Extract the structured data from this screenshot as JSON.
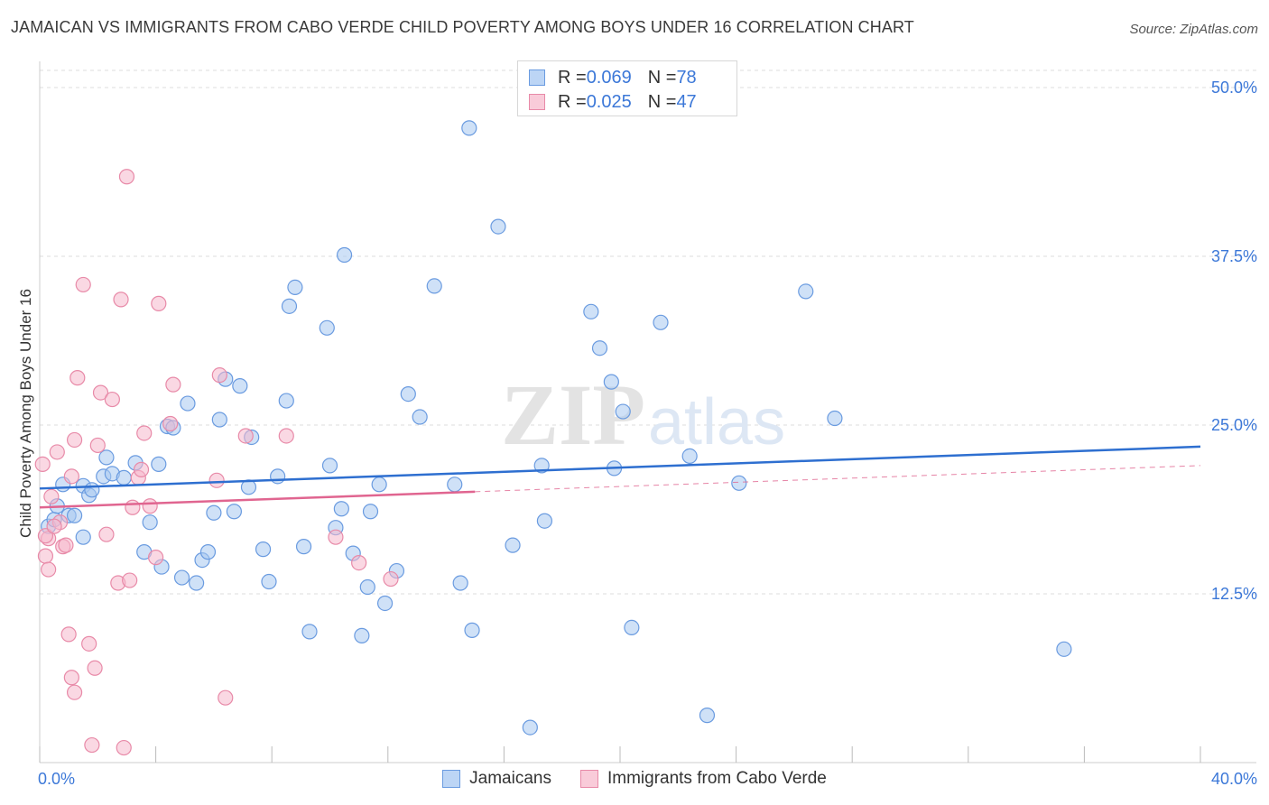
{
  "title": "JAMAICAN VS IMMIGRANTS FROM CABO VERDE CHILD POVERTY AMONG BOYS UNDER 16 CORRELATION CHART",
  "source": "Source: ZipAtlas.com",
  "watermark": {
    "zip": "ZIP",
    "atlas": "atlas"
  },
  "legend": {
    "rows": [
      {
        "r_label": "R = ",
        "r_value": "0.069",
        "n_label": "N = ",
        "n_value": "78"
      },
      {
        "r_label": "R = ",
        "r_value": "0.025",
        "n_label": "N = ",
        "n_value": "47"
      }
    ]
  },
  "chart_data": {
    "type": "scatter",
    "xlabel": "",
    "ylabel": "Child Poverty Among Boys Under 16",
    "xlim": [
      0,
      40
    ],
    "ylim": [
      0,
      50
    ],
    "x_tick_labels": [
      {
        "value": 0,
        "label": "0.0%"
      },
      {
        "value": 40,
        "label": "40.0%"
      }
    ],
    "y_tick_labels": [
      {
        "value": 12.5,
        "label": "12.5%"
      },
      {
        "value": 25,
        "label": "25.0%"
      },
      {
        "value": 37.5,
        "label": "37.5%"
      },
      {
        "value": 50,
        "label": "50.0%"
      }
    ],
    "x_minor_ticks": [
      0,
      4,
      8,
      12,
      16,
      20,
      24,
      28,
      32,
      36,
      40
    ],
    "grid": true,
    "legend_position": "bottom",
    "colors": {
      "jamaicans_fill": "#a8c8f0",
      "jamaicans_stroke": "#6a9be0",
      "jamaicans_line": "#2e6fd0",
      "caboverde_fill": "#f6b8cc",
      "caboverde_stroke": "#e88aa8",
      "caboverde_line": "#e06590",
      "axis_label": "#3c78d8",
      "grid": "#dddddd"
    },
    "series": [
      {
        "name": "Jamaicans",
        "trend": {
          "x": [
            0,
            40
          ],
          "y": [
            20.3,
            23.4
          ],
          "dashed_from": null
        },
        "points": [
          [
            0.3,
            17.5
          ],
          [
            0.5,
            18.0
          ],
          [
            0.6,
            19.0
          ],
          [
            0.8,
            20.6
          ],
          [
            1.0,
            18.3
          ],
          [
            1.2,
            18.3
          ],
          [
            1.5,
            16.7
          ],
          [
            1.5,
            20.5
          ],
          [
            1.7,
            19.8
          ],
          [
            1.8,
            20.2
          ],
          [
            2.2,
            21.2
          ],
          [
            2.3,
            22.6
          ],
          [
            2.5,
            21.4
          ],
          [
            2.9,
            21.1
          ],
          [
            3.3,
            22.2
          ],
          [
            3.6,
            15.6
          ],
          [
            3.8,
            17.8
          ],
          [
            4.1,
            22.1
          ],
          [
            4.2,
            14.5
          ],
          [
            4.4,
            24.9
          ],
          [
            4.6,
            24.8
          ],
          [
            4.9,
            13.7
          ],
          [
            5.1,
            26.6
          ],
          [
            5.4,
            13.3
          ],
          [
            5.6,
            15.0
          ],
          [
            5.8,
            15.6
          ],
          [
            6.0,
            18.5
          ],
          [
            6.2,
            25.4
          ],
          [
            6.4,
            28.4
          ],
          [
            6.7,
            18.6
          ],
          [
            6.9,
            27.9
          ],
          [
            7.2,
            20.4
          ],
          [
            7.3,
            24.1
          ],
          [
            7.7,
            15.8
          ],
          [
            7.9,
            13.4
          ],
          [
            8.2,
            21.2
          ],
          [
            8.5,
            26.8
          ],
          [
            8.6,
            33.8
          ],
          [
            8.8,
            35.2
          ],
          [
            9.1,
            16.0
          ],
          [
            9.3,
            9.7
          ],
          [
            9.9,
            32.2
          ],
          [
            10.0,
            22.0
          ],
          [
            10.2,
            17.4
          ],
          [
            10.4,
            18.8
          ],
          [
            10.5,
            37.6
          ],
          [
            10.8,
            15.5
          ],
          [
            11.1,
            9.4
          ],
          [
            11.3,
            13.0
          ],
          [
            11.4,
            18.6
          ],
          [
            11.7,
            20.6
          ],
          [
            11.9,
            11.8
          ],
          [
            12.3,
            14.2
          ],
          [
            12.7,
            27.3
          ],
          [
            13.1,
            25.6
          ],
          [
            13.6,
            35.3
          ],
          [
            14.3,
            20.6
          ],
          [
            14.5,
            13.3
          ],
          [
            14.8,
            47.0
          ],
          [
            14.9,
            9.8
          ],
          [
            15.8,
            39.7
          ],
          [
            16.3,
            16.1
          ],
          [
            16.9,
            2.6
          ],
          [
            17.3,
            22.0
          ],
          [
            17.4,
            17.9
          ],
          [
            19.0,
            33.4
          ],
          [
            19.3,
            30.7
          ],
          [
            19.7,
            28.2
          ],
          [
            19.8,
            21.8
          ],
          [
            20.1,
            26.0
          ],
          [
            20.4,
            10.0
          ],
          [
            21.4,
            32.6
          ],
          [
            22.4,
            22.7
          ],
          [
            23.0,
            3.5
          ],
          [
            24.1,
            20.7
          ],
          [
            26.4,
            34.9
          ],
          [
            27.4,
            25.5
          ],
          [
            35.3,
            8.4
          ]
        ]
      },
      {
        "name": "Immigrants from Cabo Verde",
        "trend": {
          "x": [
            0,
            40
          ],
          "y": [
            18.9,
            22.0
          ],
          "dashed_from": 15
        },
        "points": [
          [
            0.1,
            22.1
          ],
          [
            0.2,
            15.3
          ],
          [
            0.3,
            14.3
          ],
          [
            0.3,
            16.6
          ],
          [
            0.4,
            19.7
          ],
          [
            0.6,
            23.0
          ],
          [
            0.7,
            17.8
          ],
          [
            0.8,
            16.0
          ],
          [
            0.9,
            16.1
          ],
          [
            1.0,
            9.5
          ],
          [
            1.1,
            21.2
          ],
          [
            1.1,
            6.3
          ],
          [
            1.2,
            5.2
          ],
          [
            1.2,
            23.9
          ],
          [
            1.3,
            28.5
          ],
          [
            1.5,
            35.4
          ],
          [
            1.7,
            8.8
          ],
          [
            1.8,
            1.3
          ],
          [
            1.9,
            7.0
          ],
          [
            2.0,
            23.5
          ],
          [
            2.1,
            27.4
          ],
          [
            2.3,
            16.9
          ],
          [
            2.5,
            26.9
          ],
          [
            2.7,
            13.3
          ],
          [
            2.8,
            34.3
          ],
          [
            2.9,
            1.1
          ],
          [
            3.0,
            43.4
          ],
          [
            3.1,
            13.5
          ],
          [
            3.2,
            18.9
          ],
          [
            3.4,
            21.1
          ],
          [
            3.5,
            21.7
          ],
          [
            3.6,
            24.4
          ],
          [
            3.8,
            19.0
          ],
          [
            4.0,
            15.2
          ],
          [
            4.1,
            34.0
          ],
          [
            4.5,
            25.1
          ],
          [
            4.6,
            28.0
          ],
          [
            6.1,
            20.9
          ],
          [
            6.2,
            28.7
          ],
          [
            6.4,
            4.8
          ],
          [
            7.1,
            24.2
          ],
          [
            8.5,
            24.2
          ],
          [
            10.2,
            16.7
          ],
          [
            11.0,
            14.8
          ],
          [
            12.1,
            13.6
          ],
          [
            0.2,
            16.8
          ],
          [
            0.5,
            17.5
          ]
        ]
      }
    ]
  },
  "bottom_legend": {
    "items": [
      "Jamaicans",
      "Immigrants from Cabo Verde"
    ]
  }
}
